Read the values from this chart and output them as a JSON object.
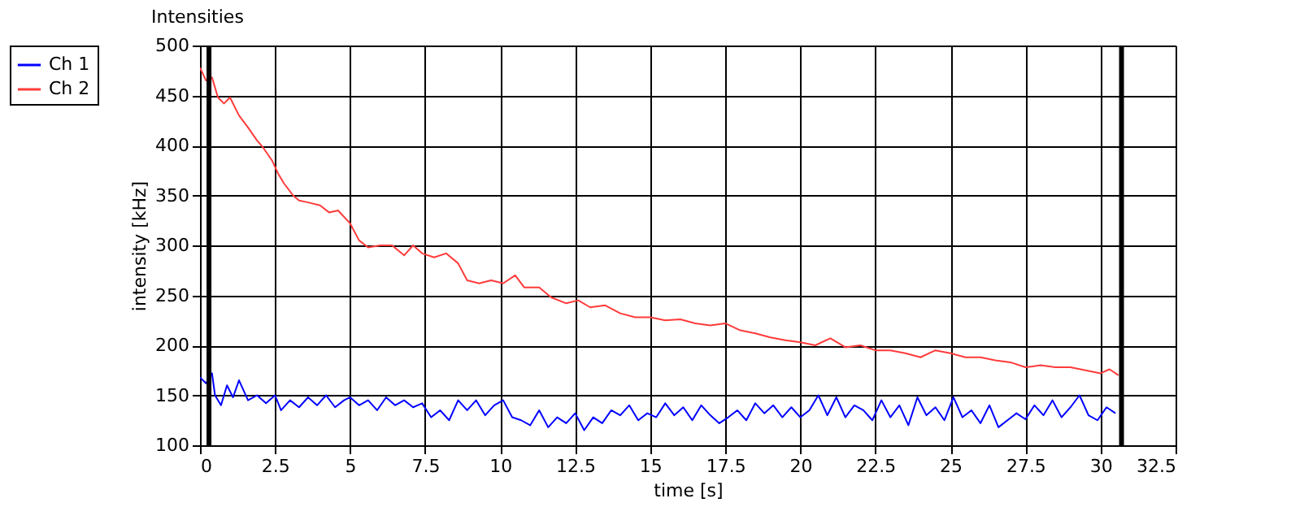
{
  "chart_data": {
    "type": "line",
    "title": "Intensities",
    "xlabel": "time [s]",
    "ylabel": "intensity [kHz]",
    "xlim": [
      0,
      32.5
    ],
    "xticks": [
      0,
      2.5,
      5,
      7.5,
      10,
      12.5,
      15,
      17.5,
      20,
      22.5,
      25,
      27.5,
      30,
      32.5
    ],
    "ylim": [
      100,
      500
    ],
    "yticks": [
      100,
      150,
      200,
      250,
      300,
      350,
      400,
      450,
      500
    ],
    "grid": true,
    "legend": "top left",
    "ref_lines": [
      {
        "axis": "x",
        "value": 0.3,
        "color": "#000000"
      },
      {
        "axis": "x",
        "value": 30.7,
        "color": "#000000"
      }
    ],
    "series": [
      {
        "name": "Ch 1",
        "color": "#0000ff",
        "x": [
          0,
          0.2,
          0.4,
          0.5,
          0.7,
          0.9,
          1.1,
          1.3,
          1.6,
          1.9,
          2.2,
          2.5,
          2.7,
          3.0,
          3.3,
          3.6,
          3.9,
          4.2,
          4.5,
          4.8,
          5.0,
          5.3,
          5.6,
          5.9,
          6.2,
          6.5,
          6.8,
          7.1,
          7.4,
          7.7,
          8.0,
          8.3,
          8.6,
          8.9,
          9.2,
          9.5,
          9.8,
          10.1,
          10.4,
          10.7,
          11.0,
          11.3,
          11.6,
          11.9,
          12.2,
          12.5,
          12.8,
          13.1,
          13.4,
          13.7,
          14.0,
          14.3,
          14.6,
          14.9,
          15.2,
          15.5,
          15.8,
          16.1,
          16.4,
          16.7,
          17.0,
          17.3,
          17.6,
          17.9,
          18.2,
          18.5,
          18.8,
          19.1,
          19.4,
          19.7,
          20.0,
          20.3,
          20.6,
          20.9,
          21.2,
          21.5,
          21.8,
          22.1,
          22.4,
          22.7,
          23.0,
          23.3,
          23.6,
          23.9,
          24.2,
          24.5,
          24.8,
          25.1,
          25.4,
          25.7,
          26.0,
          26.3,
          26.6,
          26.9,
          27.2,
          27.5,
          27.8,
          28.1,
          28.4,
          28.7,
          29.0,
          29.3,
          29.6,
          29.9,
          30.2,
          30.5
        ],
        "values": [
          168,
          162,
          172,
          150,
          140,
          160,
          148,
          165,
          145,
          150,
          142,
          150,
          135,
          145,
          138,
          148,
          140,
          150,
          138,
          145,
          148,
          140,
          145,
          135,
          148,
          140,
          145,
          138,
          142,
          128,
          135,
          125,
          145,
          135,
          145,
          130,
          140,
          145,
          128,
          125,
          120,
          135,
          118,
          128,
          122,
          132,
          115,
          128,
          122,
          135,
          130,
          140,
          125,
          132,
          128,
          142,
          130,
          138,
          125,
          140,
          130,
          122,
          128,
          135,
          125,
          142,
          132,
          140,
          128,
          138,
          128,
          135,
          150,
          130,
          148,
          128,
          140,
          135,
          125,
          145,
          128,
          140,
          120,
          148,
          130,
          138,
          125,
          148,
          128,
          135,
          122,
          140,
          118,
          125,
          132,
          126,
          140,
          130,
          145,
          128,
          138,
          150,
          130,
          125,
          138,
          132
        ]
      },
      {
        "name": "Ch 2",
        "color": "#ff3b3b",
        "x": [
          0,
          0.2,
          0.4,
          0.6,
          0.8,
          1.0,
          1.3,
          1.6,
          1.9,
          2.1,
          2.4,
          2.6,
          2.8,
          3.1,
          3.3,
          3.6,
          4.0,
          4.3,
          4.6,
          5.0,
          5.3,
          5.6,
          6.0,
          6.4,
          6.8,
          7.1,
          7.4,
          7.8,
          8.2,
          8.6,
          8.9,
          9.3,
          9.7,
          10.1,
          10.5,
          10.8,
          11.3,
          11.7,
          12.2,
          12.6,
          13.0,
          13.5,
          14.0,
          14.5,
          15.0,
          15.5,
          16.0,
          16.5,
          17.0,
          17.5,
          18.0,
          18.5,
          19.0,
          19.5,
          20.0,
          20.5,
          21.0,
          21.5,
          22.0,
          22.5,
          23.0,
          23.5,
          24.0,
          24.5,
          25.0,
          25.5,
          26.0,
          26.5,
          27.0,
          27.5,
          28.0,
          28.5,
          29.0,
          29.5,
          30.0,
          30.3,
          30.6
        ],
        "values": [
          478,
          465,
          468,
          448,
          442,
          448,
          430,
          418,
          405,
          398,
          385,
          372,
          362,
          350,
          345,
          343,
          340,
          333,
          335,
          322,
          305,
          298,
          300,
          300,
          290,
          300,
          292,
          288,
          292,
          282,
          265,
          262,
          265,
          262,
          270,
          258,
          258,
          248,
          242,
          245,
          238,
          240,
          232,
          228,
          228,
          225,
          226,
          222,
          220,
          222,
          215,
          212,
          208,
          205,
          203,
          200,
          207,
          198,
          200,
          195,
          195,
          192,
          188,
          195,
          192,
          188,
          188,
          185,
          183,
          178,
          180,
          178,
          178,
          175,
          172,
          176,
          170
        ]
      }
    ]
  }
}
